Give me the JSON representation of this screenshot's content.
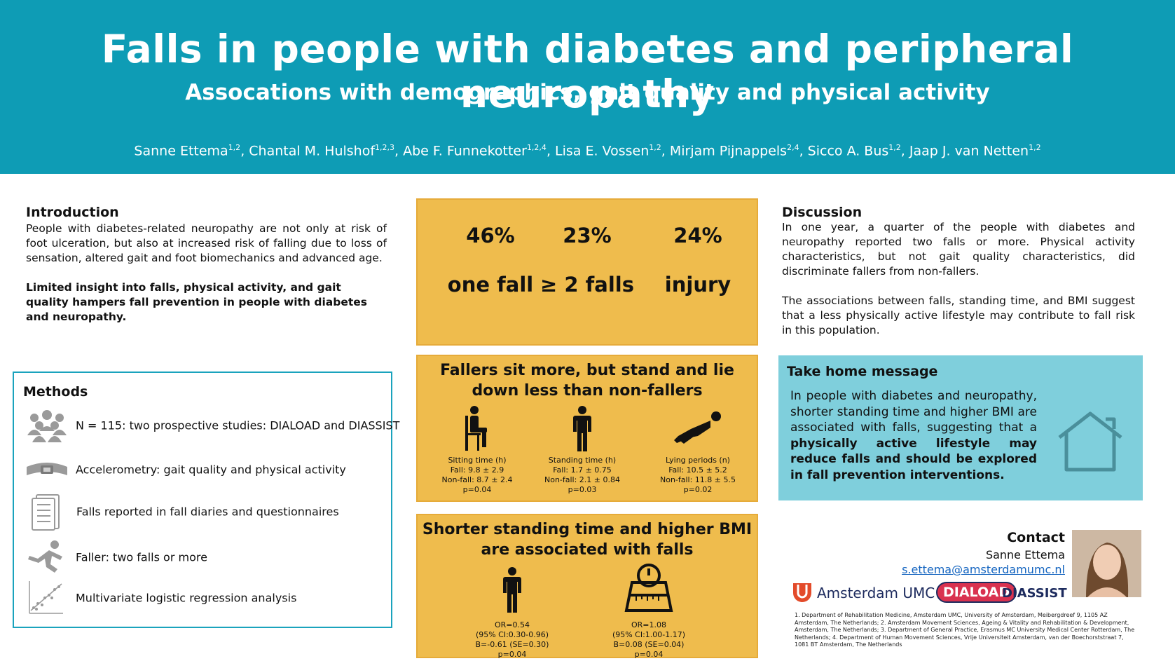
{
  "header": {
    "title": "Falls in people with diabetes and peripheral neuropathy",
    "subtitle": "Assocations with demographics, gait quality and physical activity",
    "authors": [
      {
        "name": "Sanne Ettema",
        "aff": "1,2"
      },
      {
        "name": "Chantal M. Hulshof",
        "aff": "1,2,3"
      },
      {
        "name": "Abe F. Funnekotter",
        "aff": "1,2,4"
      },
      {
        "name": "Lisa E. Vossen",
        "aff": "1,2"
      },
      {
        "name": "Mirjam Pijnappels",
        "aff": "2,4"
      },
      {
        "name": "Sicco A. Bus",
        "aff": "1,2"
      },
      {
        "name": "Jaap J. van Netten",
        "aff": "1,2"
      }
    ]
  },
  "introduction": {
    "title": "Introduction",
    "text": "People with diabetes-related neuropathy are not only at risk of foot ulceration, but also at increased risk of falling due to loss of sensation, altered gait and foot biomechanics and advanced age.",
    "bold_text": "Limited insight into falls, physical activity, and gait quality hampers fall prevention in people with diabetes and neuropathy."
  },
  "methods": {
    "title": "Methods",
    "items": [
      {
        "icon": "people-group-icon",
        "text": "N = 115: two prospective studies: DIALOAD and DIASSIST"
      },
      {
        "icon": "accelerometer-band-icon",
        "text": "Accelerometry: gait quality and physical activity"
      },
      {
        "icon": "questionnaire-icon",
        "text": "Falls reported in fall diaries and questionnaires"
      },
      {
        "icon": "falling-person-icon",
        "text": "Faller: two falls or more"
      },
      {
        "icon": "scatter-plot-icon",
        "text": "Multivariate logistic regression analysis"
      }
    ]
  },
  "stats": [
    {
      "pct": "46%",
      "label": "one fall"
    },
    {
      "pct": "23%",
      "label": "≥ 2 falls"
    },
    {
      "pct": "24%",
      "label": "injury"
    }
  ],
  "activity_box": {
    "title": "Fallers sit more, but stand and lie down less than non-fallers",
    "figures": [
      {
        "icon": "sitting-person-icon",
        "lines": [
          "Sitting time (h)",
          "Fall: 9.8 ± 2.9",
          "Non-fall: 8.7 ± 2.4",
          "p=0.04"
        ]
      },
      {
        "icon": "standing-person-icon",
        "lines": [
          "Standing time (h)",
          "Fall: 1.7 ± 0.75",
          "Non-fall: 2.1 ± 0.84",
          "p=0.03"
        ]
      },
      {
        "icon": "lying-person-icon",
        "lines": [
          "Lying periods (n)",
          "Fall: 10.5 ± 5.2",
          "Non-fall: 11.8 ± 5.5",
          "p=0.02"
        ]
      }
    ]
  },
  "association_box": {
    "title": "Shorter standing time and higher BMI are associated with falls",
    "figures": [
      {
        "icon": "standing-person-icon",
        "lines": [
          "OR=0.54",
          "(95% CI:0.30-0.96)",
          "B=-0.61 (SE=0.30)",
          "p=0.04"
        ]
      },
      {
        "icon": "weight-scale-icon",
        "lines": [
          "OR=1.08",
          "(95% CI:1.00-1.17)",
          "B=0.08 (SE=0.04)",
          "p=0.04"
        ]
      }
    ]
  },
  "discussion": {
    "title": "Discussion",
    "p1": "In one year, a quarter of the people with diabetes and neuropathy reported two falls or more. Physical activity characteristics, but not gait quality characteristics, did discriminate fallers from non-fallers.",
    "p2": "The associations between falls, standing time, and BMI suggest that a less physically active lifestyle may contribute to fall risk in this population."
  },
  "take_home": {
    "title": "Take home message",
    "text_plain": "In people with diabetes and neuropathy, shorter standing time and higher BMI are associated with falls, suggesting that a ",
    "text_bold": "physically active lifestyle may reduce falls and should be explored in fall prevention interventions."
  },
  "contact": {
    "title": "Contact",
    "name": "Sanne Ettema",
    "email": "s.ettema@amsterdamumc.nl"
  },
  "logos": {
    "amsterdam_umc": "Amsterdam UMC",
    "diaload": "DIALOAD",
    "diassist": "DIASSIST"
  },
  "references": "1. Department of Rehabilitation Medicine, Amsterdam UMC, University of Amsterdam, Meibergdreef 9, 1105 AZ Amsterdam, The Netherlands; 2. Amsterdam Movement Sciences, Ageing & Vitality and Rehabilitation & Development, Amsterdam, The Netherlands; 3. Department of General Practice, Erasmus MC University Medical Center Rotterdam, The Netherlands; 4. Department of Human Movement Sciences, Vrije Universiteit Amsterdam, van der Boechorststraat 7, 1081 BT Amsterdam, The Netherlands",
  "colors": {
    "header_bg": "#0e9cb5",
    "panel_orange": "#efbc4d",
    "take_home_bg": "#7fcfdc",
    "methods_border": "#1aa3bd"
  }
}
